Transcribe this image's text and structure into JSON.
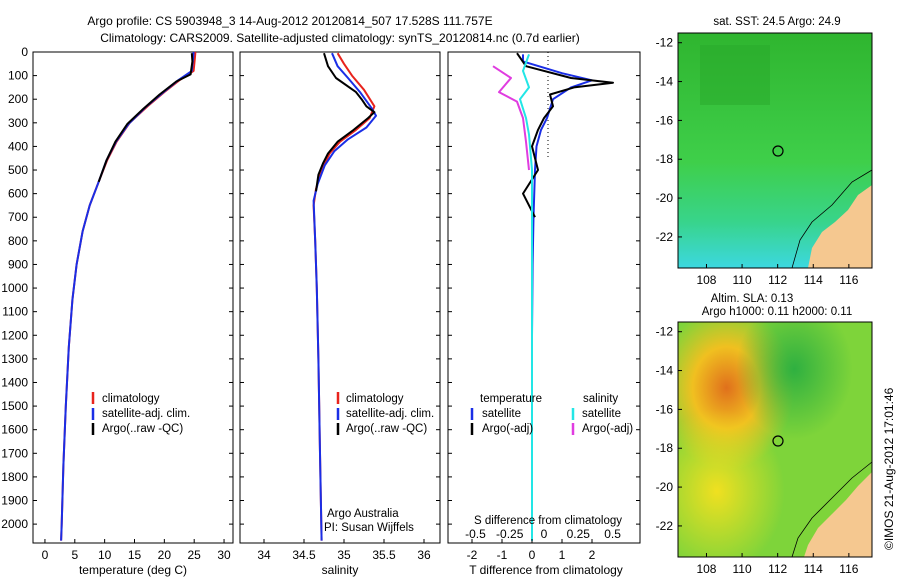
{
  "title": {
    "line1": "Argo profile: CS 5903948_3 14-Aug-2012 20120814_507 17.528S 111.757E",
    "line2": "Climatology: CARS2009. Satellite-adjusted climatology: synTS_20120814.nc (0.7d earlier)"
  },
  "colors": {
    "clim": "#e8231c",
    "sat": "#1a2ee6",
    "argo": "#000000",
    "sat_s": "#22e6e6",
    "argo_s": "#e03ce0"
  },
  "depth_axis": {
    "ticks": [
      "0",
      "100",
      "200",
      "300",
      "400",
      "500",
      "600",
      "700",
      "800",
      "900",
      "1000",
      "1100",
      "1200",
      "1300",
      "1400",
      "1500",
      "1600",
      "1700",
      "1800",
      "1900",
      "2000"
    ],
    "range": [
      0,
      2080
    ]
  },
  "chart_data": [
    {
      "type": "line",
      "xlabel": "temperature (deg C)",
      "xlim": [
        -2,
        31.5
      ],
      "xticks": [
        "0",
        "5",
        "10",
        "15",
        "20",
        "25",
        "30"
      ],
      "xtick_values": [
        0,
        5,
        10,
        15,
        20,
        25,
        30
      ],
      "legend": [
        "climatology",
        "satellite-adj. clim.",
        "Argo(..raw -QC)"
      ],
      "series": [
        {
          "name": "climatology",
          "color": "clim",
          "points": [
            [
              25.2,
              0
            ],
            [
              25.1,
              30
            ],
            [
              24.9,
              80
            ],
            [
              22.5,
              120
            ],
            [
              20,
              170
            ],
            [
              17.2,
              230
            ],
            [
              14.2,
              300
            ],
            [
              12,
              380
            ],
            [
              10.4,
              460
            ],
            [
              9,
              550
            ],
            [
              7.5,
              650
            ],
            [
              6.3,
              760
            ],
            [
              5.3,
              900
            ],
            [
              4.6,
              1050
            ],
            [
              4,
              1250
            ],
            [
              3.5,
              1500
            ],
            [
              3.1,
              1750
            ],
            [
              2.8,
              2000
            ],
            [
              2.7,
              2070
            ]
          ]
        },
        {
          "name": "satellite-adj. clim.",
          "color": "sat",
          "points": [
            [
              24.9,
              0
            ],
            [
              24.8,
              30
            ],
            [
              24.6,
              80
            ],
            [
              22.3,
              120
            ],
            [
              19.6,
              175
            ],
            [
              16.8,
              235
            ],
            [
              14,
              305
            ],
            [
              11.9,
              380
            ],
            [
              10.3,
              460
            ],
            [
              9,
              550
            ],
            [
              7.5,
              650
            ],
            [
              6.3,
              760
            ],
            [
              5.3,
              900
            ],
            [
              4.6,
              1050
            ],
            [
              4,
              1250
            ],
            [
              3.5,
              1500
            ],
            [
              3.1,
              1750
            ],
            [
              2.8,
              2000
            ],
            [
              2.7,
              2070
            ]
          ]
        },
        {
          "name": "Argo(..raw -QC)",
          "color": "argo",
          "points": [
            [
              24.6,
              5
            ],
            [
              24.7,
              40
            ],
            [
              24.4,
              95
            ],
            [
              22,
              125
            ],
            [
              19.2,
              180
            ],
            [
              16.5,
              240
            ],
            [
              13.8,
              305
            ],
            [
              11.8,
              380
            ],
            [
              10.3,
              460
            ],
            [
              9,
              550
            ]
          ]
        }
      ]
    },
    {
      "type": "line",
      "xlabel": "salinity",
      "xlim": [
        33.7,
        36.2
      ],
      "xticks": [
        "34",
        "34.5",
        "35",
        "35.5",
        "36"
      ],
      "xtick_values": [
        34,
        34.5,
        35,
        35.5,
        36
      ],
      "legend": [
        "climatology",
        "satellite-adj. clim.",
        "Argo(..raw -QC)"
      ],
      "note": [
        "Argo Australia",
        "PI: Susan Wijffels"
      ],
      "series": [
        {
          "name": "climatology",
          "color": "clim",
          "points": [
            [
              34.92,
              5
            ],
            [
              35.0,
              50
            ],
            [
              35.1,
              100
            ],
            [
              35.25,
              160
            ],
            [
              35.38,
              230
            ],
            [
              35.32,
              280
            ],
            [
              35.15,
              330
            ],
            [
              34.95,
              380
            ],
            [
              34.82,
              430
            ],
            [
              34.72,
              500
            ],
            [
              34.65,
              580
            ],
            [
              34.62,
              650
            ],
            [
              34.64,
              800
            ],
            [
              34.66,
              1000
            ],
            [
              34.68,
              1300
            ],
            [
              34.7,
              1700
            ],
            [
              34.72,
              2070
            ]
          ]
        },
        {
          "name": "satellite-adj. clim.",
          "color": "sat",
          "points": [
            [
              34.85,
              5
            ],
            [
              34.92,
              60
            ],
            [
              35.05,
              110
            ],
            [
              35.2,
              170
            ],
            [
              35.35,
              240
            ],
            [
              35.4,
              270
            ],
            [
              35.28,
              320
            ],
            [
              35.05,
              370
            ],
            [
              34.88,
              420
            ],
            [
              34.76,
              480
            ],
            [
              34.67,
              560
            ],
            [
              34.62,
              630
            ],
            [
              34.64,
              800
            ],
            [
              34.66,
              1000
            ],
            [
              34.68,
              1300
            ],
            [
              34.7,
              1700
            ],
            [
              34.72,
              2070
            ]
          ]
        },
        {
          "name": "Argo(..raw -QC)",
          "color": "argo",
          "points": [
            [
              34.75,
              5
            ],
            [
              34.8,
              60
            ],
            [
              34.9,
              110
            ],
            [
              35.15,
              170
            ],
            [
              35.22,
              200
            ],
            [
              35.28,
              230
            ],
            [
              35.38,
              255
            ],
            [
              35.3,
              280
            ],
            [
              35.12,
              330
            ],
            [
              34.92,
              380
            ],
            [
              34.8,
              430
            ],
            [
              34.74,
              470
            ],
            [
              34.68,
              520
            ],
            [
              34.65,
              590
            ]
          ]
        }
      ]
    },
    {
      "type": "line",
      "xlabel": "T difference from climatology",
      "xlim": [
        -2.8,
        3.6
      ],
      "xticks": [
        "-2",
        "-1",
        "0",
        "1",
        "2"
      ],
      "xtick_values": [
        -2,
        -1,
        0,
        1,
        2
      ],
      "top_label": "S difference from climatology",
      "top_ticks": [
        "-0.5",
        "-0.25",
        "0",
        "0.25",
        "0.5"
      ],
      "top_tick_values": [
        -0.5,
        -0.25,
        0,
        0.25,
        0.5
      ],
      "legend_temperature_title": "temperature",
      "legend_salinity_title": "salinity",
      "legend_temperature": [
        "satellite",
        "Argo(-adj)"
      ],
      "legend_salinity": [
        "satellite",
        "Argo(-adj)"
      ],
      "series": [
        {
          "name": "T satellite",
          "color": "sat",
          "points": [
            [
              -0.3,
              10
            ],
            [
              -0.3,
              40
            ],
            [
              1.0,
              90
            ],
            [
              2.0,
              120
            ],
            [
              1.3,
              150
            ],
            [
              0.7,
              200
            ],
            [
              0.5,
              280
            ],
            [
              0.3,
              330
            ],
            [
              0.15,
              400
            ],
            [
              0.1,
              500
            ],
            [
              0.05,
              700
            ],
            [
              0.02,
              900
            ],
            [
              0,
              1200
            ],
            [
              0,
              2070
            ]
          ]
        },
        {
          "name": "T Argo(-adj)",
          "color": "argo",
          "points": [
            [
              -0.5,
              5
            ],
            [
              -0.2,
              60
            ],
            [
              1.3,
              110
            ],
            [
              2.7,
              130
            ],
            [
              1.4,
              150
            ],
            [
              0.6,
              180
            ],
            [
              0.7,
              230
            ],
            [
              0.4,
              280
            ],
            [
              0.2,
              330
            ],
            [
              0.0,
              400
            ],
            [
              0.2,
              500
            ],
            [
              -0.3,
              600
            ],
            [
              0.1,
              700
            ]
          ]
        },
        {
          "name": "S satellite",
          "color": "sat_s",
          "points": [
            [
              -0.1,
              10
            ],
            [
              -0.3,
              80
            ],
            [
              -0.1,
              150
            ],
            [
              -0.4,
              200
            ],
            [
              -0.2,
              280
            ],
            [
              -0.1,
              350
            ],
            [
              0,
              500
            ],
            [
              0,
              2070
            ]
          ]
        },
        {
          "name": "S Argo(-adj)",
          "color": "argo_s",
          "points": [
            [
              -1.3,
              60
            ],
            [
              -0.7,
              110
            ],
            [
              -1.1,
              170
            ],
            [
              -0.5,
              210
            ],
            [
              -0.3,
              280
            ],
            [
              -0.2,
              380
            ],
            [
              -0.1,
              500
            ]
          ]
        }
      ]
    }
  ],
  "maps": {
    "sst_title": "sat. SST: 24.5 Argo: 24.9",
    "sla_title1": "Altim. SLA: 0.13",
    "sla_title2": "Argo h1000: 0.11 h2000: 0.11",
    "lat_ticks": [
      "-12",
      "-14",
      "-16",
      "-18",
      "-20",
      "-22"
    ],
    "lon_ticks": [
      "108",
      "110",
      "112",
      "114",
      "116"
    ],
    "stamp": "©IMOS 21-Aug-2012 17:01:46"
  }
}
